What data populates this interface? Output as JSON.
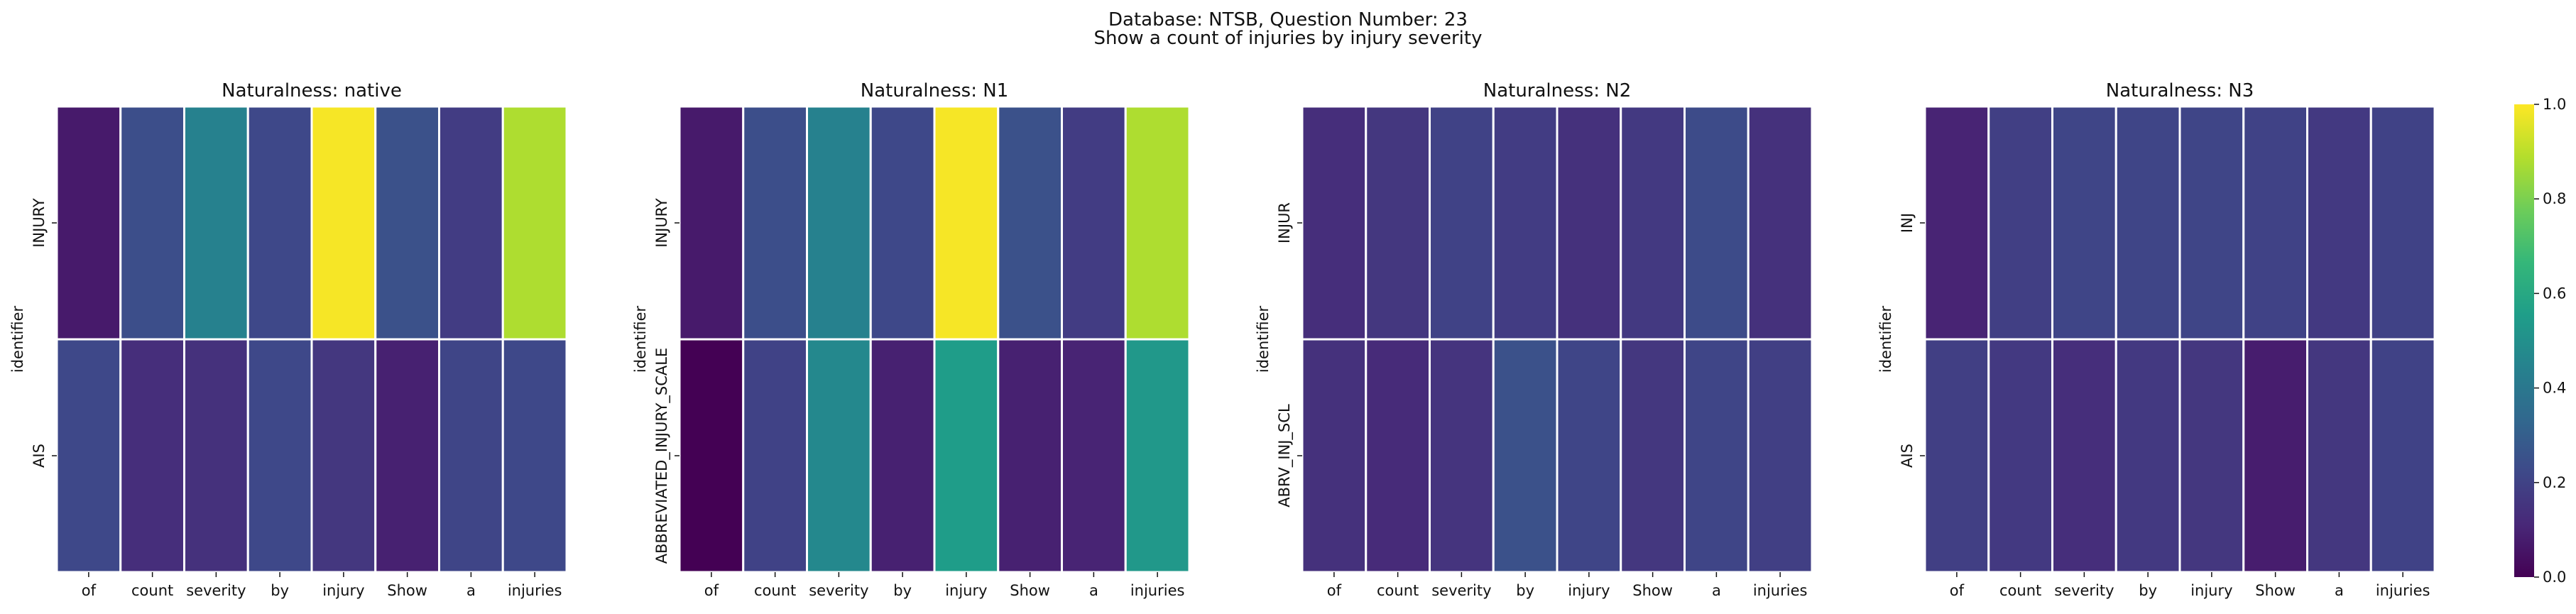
{
  "suptitle": {
    "line1": "Database: NTSB, Question Number: 23",
    "line2": "Show a count of injuries by injury severity"
  },
  "colormap": "viridis",
  "colorbar": {
    "min": 0.0,
    "max": 1.0,
    "ticks": [
      "0.0",
      "0.2",
      "0.4",
      "0.6",
      "0.8",
      "1.0"
    ]
  },
  "chart_data": [
    {
      "type": "heatmap",
      "title": "Naturalness: native",
      "ylabel": "identifier",
      "x": [
        "of",
        "count",
        "severity",
        "by",
        "injury",
        "Show",
        "a",
        "injuries"
      ],
      "y": [
        "INJURY",
        "AIS"
      ],
      "values": [
        [
          0.07,
          0.24,
          0.44,
          0.22,
          0.99,
          0.25,
          0.18,
          0.88
        ],
        [
          0.22,
          0.13,
          0.14,
          0.22,
          0.16,
          0.09,
          0.21,
          0.22
        ]
      ]
    },
    {
      "type": "heatmap",
      "title": "Naturalness: N1",
      "ylabel": "identifier",
      "x": [
        "of",
        "count",
        "severity",
        "by",
        "injury",
        "Show",
        "a",
        "injuries"
      ],
      "y": [
        "INJURY",
        "ABBREVIATED_INJURY_SCALE"
      ],
      "values": [
        [
          0.07,
          0.24,
          0.44,
          0.22,
          0.99,
          0.25,
          0.18,
          0.88
        ],
        [
          0.0,
          0.2,
          0.47,
          0.09,
          0.55,
          0.09,
          0.1,
          0.53
        ]
      ]
    },
    {
      "type": "heatmap",
      "title": "Naturalness: N2",
      "ylabel": "identifier",
      "x": [
        "of",
        "count",
        "severity",
        "by",
        "injury",
        "Show",
        "a",
        "injuries"
      ],
      "y": [
        "INJUR",
        "ABRV_INJ_SCL"
      ],
      "values": [
        [
          0.13,
          0.16,
          0.2,
          0.18,
          0.14,
          0.17,
          0.23,
          0.14
        ],
        [
          0.14,
          0.12,
          0.15,
          0.25,
          0.21,
          0.16,
          0.21,
          0.19
        ]
      ]
    },
    {
      "type": "heatmap",
      "title": "Naturalness: N3",
      "ylabel": "identifier",
      "x": [
        "of",
        "count",
        "severity",
        "by",
        "injury",
        "Show",
        "a",
        "injuries"
      ],
      "y": [
        "INJ",
        "AIS"
      ],
      "values": [
        [
          0.1,
          0.19,
          0.21,
          0.21,
          0.21,
          0.2,
          0.17,
          0.2
        ],
        [
          0.19,
          0.17,
          0.13,
          0.17,
          0.16,
          0.08,
          0.16,
          0.2
        ]
      ]
    }
  ]
}
